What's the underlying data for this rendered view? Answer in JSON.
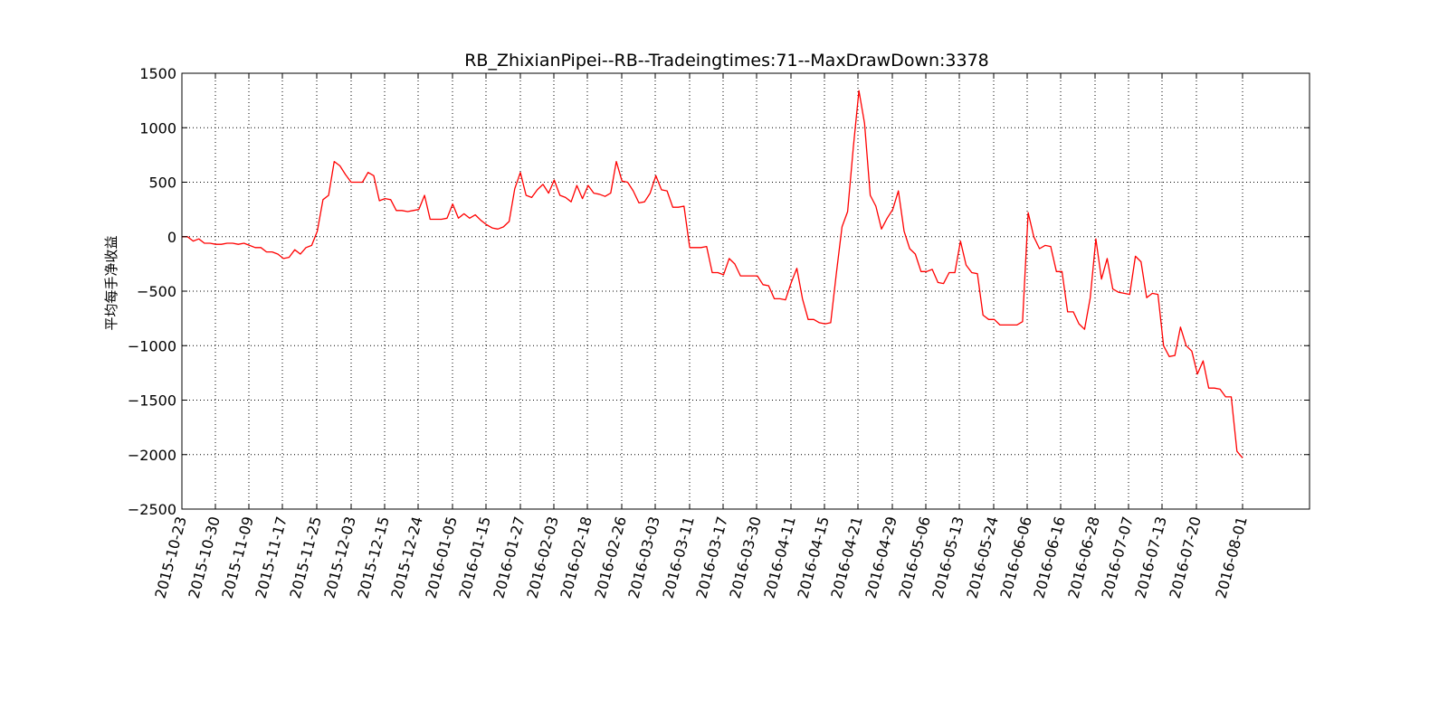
{
  "chart_data": {
    "type": "line",
    "title": "RB_ZhixianPipei--RB--Tradeingtimes:71--MaxDrawDown:3378",
    "xlabel": "",
    "ylabel": "平均每手净收益",
    "ylim": [
      -2500,
      1500
    ],
    "yticks": [
      1500,
      1000,
      500,
      0,
      -500,
      -1000,
      -1500,
      -2000,
      -2500
    ],
    "xtick_labels": [
      "2015-10-23",
      "2015-10-30",
      "2015-11-09",
      "2015-11-17",
      "2015-11-25",
      "2015-12-03",
      "2015-12-15",
      "2015-12-24",
      "2016-01-05",
      "2016-01-15",
      "2016-01-27",
      "2016-02-03",
      "2016-02-18",
      "2016-02-26",
      "2016-03-03",
      "2016-03-11",
      "2016-03-17",
      "2016-03-30",
      "2016-04-11",
      "2016-04-15",
      "2016-04-21",
      "2016-04-29",
      "2016-05-06",
      "2016-05-13",
      "2016-05-24",
      "2016-06-06",
      "2016-06-16",
      "2016-06-28",
      "2016-07-07",
      "2016-07-13",
      "2016-07-20",
      "2016-08-01"
    ],
    "grid": true,
    "line_color": "#ff0000",
    "series": [
      {
        "values": [
          0,
          0,
          -40,
          -20,
          -60,
          -60,
          -70,
          -70,
          -60,
          -60,
          -70,
          -60,
          -80,
          -100,
          -100,
          -140,
          -140,
          -160,
          -200,
          -190,
          -120,
          -160,
          -100,
          -80,
          50,
          340,
          380,
          690,
          650,
          570,
          500,
          500,
          500,
          590,
          560,
          330,
          350,
          340,
          240,
          240,
          230,
          240,
          250,
          380,
          160,
          160,
          160,
          170,
          300,
          170,
          210,
          170,
          200,
          150,
          110,
          80,
          70,
          90,
          140,
          440,
          590,
          380,
          360,
          430,
          480,
          400,
          520,
          380,
          360,
          320,
          470,
          350,
          470,
          400,
          390,
          370,
          400,
          690,
          510,
          500,
          420,
          310,
          320,
          400,
          560,
          430,
          420,
          270,
          270,
          280,
          -100,
          -100,
          -100,
          -90,
          -330,
          -330,
          -350,
          -200,
          -250,
          -360,
          -360,
          -360,
          -360,
          -440,
          -450,
          -570,
          -570,
          -580,
          -420,
          -290,
          -570,
          -760,
          -760,
          -790,
          -800,
          -790,
          -340,
          90,
          230,
          820,
          1340,
          1040,
          380,
          280,
          70,
          170,
          250,
          420,
          50,
          -110,
          -160,
          -320,
          -320,
          -300,
          -420,
          -430,
          -330,
          -330,
          -40,
          -260,
          -330,
          -340,
          -720,
          -760,
          -760,
          -810,
          -810,
          -810,
          -810,
          -780,
          220,
          0,
          -110,
          -80,
          -90,
          -320,
          -320,
          -690,
          -690,
          -800,
          -850,
          -560,
          -20,
          -390,
          -200,
          -480,
          -510,
          -520,
          -530,
          -180,
          -230,
          -560,
          -520,
          -530,
          -1000,
          -1100,
          -1090,
          -830,
          -1000,
          -1050,
          -1260,
          -1140,
          -1390,
          -1390,
          -1400,
          -1470,
          -1470,
          -1970,
          -2030
        ]
      }
    ]
  }
}
